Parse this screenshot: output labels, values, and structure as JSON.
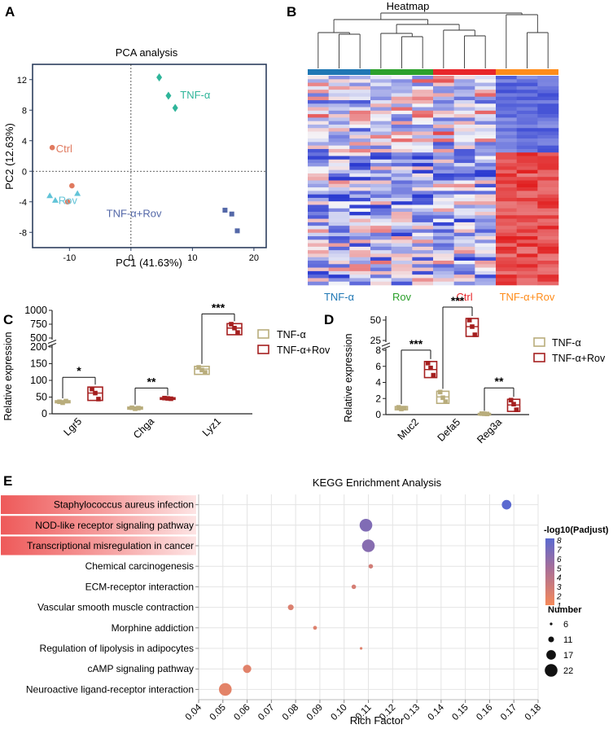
{
  "panel_labels": {
    "A": "A",
    "B": "B",
    "C": "C",
    "D": "D",
    "E": "E"
  },
  "colors": {
    "tnf": "#2fb59a",
    "ctrl": "#e07a5f",
    "rov": "#62c4d8",
    "tnfrov": "#5468a8",
    "heat_blue": "#1f77b4",
    "heat_green": "#2ca02c",
    "heat_red": "#e8262a",
    "heat_orange": "#ff8c1a",
    "box_tan": "#b9ad7c",
    "box_red": "#a51f1f",
    "hm_low": "#2b3bd1",
    "hm_mid": "#f4f4f8",
    "hm_high": "#e11f1f"
  },
  "chart_data": [
    {
      "id": "pca",
      "type": "scatter",
      "title": "PCA analysis",
      "xlabel": "PC1 (41.63%)",
      "ylabel": "PC2 (12.63%)",
      "xlim": [
        -16,
        22
      ],
      "ylim": [
        -10,
        14
      ],
      "xticks": [
        -10,
        0,
        10,
        20
      ],
      "yticks": [
        -8,
        -4,
        0,
        4,
        8,
        12
      ],
      "series": [
        {
          "name": "TNF-α",
          "color": "#2fb59a",
          "marker": "diamond",
          "label_pos": [
            8,
            9.5
          ],
          "points": [
            [
              4.6,
              12.3
            ],
            [
              6.1,
              9.9
            ],
            [
              7.2,
              8.3
            ]
          ]
        },
        {
          "name": "Ctrl",
          "color": "#e07a5f",
          "marker": "circle",
          "label_pos": [
            -12.2,
            2.5
          ],
          "points": [
            [
              -12.8,
              3.1
            ],
            [
              -9.6,
              -1.9
            ],
            [
              -10.3,
              -4.0
            ]
          ]
        },
        {
          "name": "Rov",
          "color": "#62c4d8",
          "marker": "triangle",
          "label_pos": [
            -11.8,
            -4.3
          ],
          "points": [
            [
              -13.2,
              -3.2
            ],
            [
              -12.3,
              -3.8
            ],
            [
              -8.7,
              -2.9
            ]
          ]
        },
        {
          "name": "TNF-α+Rov",
          "color": "#5468a8",
          "marker": "square",
          "label_pos": [
            -4,
            -6
          ],
          "points": [
            [
              15.3,
              -5.1
            ],
            [
              16.4,
              -5.6
            ],
            [
              17.3,
              -7.8
            ]
          ]
        }
      ]
    },
    {
      "id": "heatmap",
      "type": "heatmap",
      "title": "Heatmap",
      "groups": [
        "TNF-α",
        "Rov",
        "Ctrl",
        "TNF-α+Rov"
      ],
      "n_columns": 12,
      "n_rows": 60
    },
    {
      "id": "panel_c",
      "type": "box",
      "ylabel": "Relative expression",
      "categories": [
        "Lgr5",
        "Chga",
        "Lyz1"
      ],
      "lower_axis": {
        "range": [
          0,
          200
        ],
        "ticks": [
          0,
          50,
          100,
          150,
          200
        ]
      },
      "upper_axis": {
        "range": [
          500,
          1000
        ],
        "ticks": [
          500,
          750,
          1000
        ]
      },
      "legend": [
        "TNF-α",
        "TNF-α+Rov"
      ],
      "series": [
        {
          "name": "TNF-α",
          "color": "#b9ad7c",
          "boxes": [
            {
              "q1": 33,
              "median": 36,
              "q3": 39,
              "points": [
                36,
                33,
                38
              ]
            },
            {
              "q1": 14,
              "median": 17,
              "q3": 20,
              "points": [
                18,
                15,
                17
              ]
            },
            {
              "q1": 118,
              "median": 134,
              "q3": 142,
              "points": [
                139,
                131,
                124
              ]
            }
          ]
        },
        {
          "name": "TNF-α+Rov",
          "color": "#a51f1f",
          "boxes": [
            {
              "q1": 40,
              "median": 62,
              "q3": 80,
              "points": [
                74,
                62,
                44
              ]
            },
            {
              "q1": 44,
              "median": 46,
              "q3": 48,
              "points": [
                47,
                46,
                45
              ]
            },
            {
              "q1": 560,
              "median": 680,
              "q3": 760,
              "points": [
                750,
                680,
                600
              ]
            }
          ]
        }
      ],
      "significance": [
        "*",
        "**",
        "***"
      ]
    },
    {
      "id": "panel_d",
      "type": "box",
      "ylabel": "Relative expression",
      "categories": [
        "Muc2",
        "Defa5",
        "Reg3a"
      ],
      "lower_axis": {
        "range": [
          0,
          8
        ],
        "ticks": [
          0,
          2,
          4,
          6,
          8
        ]
      },
      "upper_axis": {
        "range": [
          25,
          55
        ],
        "ticks": [
          25,
          50
        ]
      },
      "legend": [
        "TNF-α",
        "TNF-α+Rov"
      ],
      "series": [
        {
          "name": "TNF-α",
          "color": "#b9ad7c",
          "boxes": [
            {
              "q1": 0.6,
              "median": 0.8,
              "q3": 1.0,
              "points": [
                0.9,
                0.7,
                0.8
              ]
            },
            {
              "q1": 1.4,
              "median": 2.2,
              "q3": 2.9,
              "points": [
                2.8,
                2.1,
                1.6
              ]
            },
            {
              "q1": 0.05,
              "median": 0.1,
              "q3": 0.15,
              "points": [
                0.12,
                0.1,
                0.08
              ]
            }
          ]
        },
        {
          "name": "TNF-α+Rov",
          "color": "#a51f1f",
          "boxes": [
            {
              "q1": 4.6,
              "median": 5.6,
              "q3": 6.6,
              "points": [
                6.4,
                5.8,
                4.9
              ]
            },
            {
              "q1": 30,
              "median": 42,
              "q3": 52,
              "points": [
                50,
                42,
                32
              ]
            },
            {
              "q1": 0.4,
              "median": 1.2,
              "q3": 1.9,
              "points": [
                1.8,
                1.3,
                0.6
              ]
            }
          ]
        }
      ],
      "significance": [
        "***",
        "***",
        "**"
      ]
    },
    {
      "id": "kegg",
      "type": "scatter",
      "title": "KEGG Enrichment Analysis",
      "xlabel": "Rich Factor",
      "xlim": [
        0.04,
        0.18
      ],
      "xticks": [
        "0.04",
        "0.05",
        "0.06",
        "0.07",
        "0.08",
        "0.09",
        "0.10",
        "0.11",
        "0.12",
        "0.13",
        "0.14",
        "0.15",
        "0.16",
        "0.17",
        "0.18"
      ],
      "color_legend": {
        "title": "-log10(Padjust)",
        "ticks": [
          "8",
          "7",
          "6",
          "5",
          "4",
          "3",
          "2",
          "1"
        ]
      },
      "size_legend": {
        "title": "Number",
        "values": [
          "6",
          "11",
          "17",
          "22"
        ]
      },
      "pathways": [
        {
          "name": "Staphylococcus aureus infection",
          "rich_factor": 0.167,
          "neglog10_padj": 8.0,
          "number": 17,
          "highlight": true
        },
        {
          "name": "NOD-like receptor signaling pathway",
          "rich_factor": 0.109,
          "neglog10_padj": 6.5,
          "number": 22,
          "highlight": true
        },
        {
          "name": "Transcriptional misregulation in cancer",
          "rich_factor": 0.11,
          "neglog10_padj": 6.2,
          "number": 22,
          "highlight": true
        },
        {
          "name": "Chemical carcinogenesis",
          "rich_factor": 0.111,
          "neglog10_padj": 2.8,
          "number": 9,
          "highlight": false
        },
        {
          "name": "ECM-receptor interaction",
          "rich_factor": 0.104,
          "neglog10_padj": 2.6,
          "number": 9,
          "highlight": false
        },
        {
          "name": "Vascular smooth muscle contraction",
          "rich_factor": 0.078,
          "neglog10_padj": 2.3,
          "number": 11,
          "highlight": false
        },
        {
          "name": "Morphine addiction",
          "rich_factor": 0.088,
          "neglog10_padj": 2.2,
          "number": 8,
          "highlight": false
        },
        {
          "name": "Regulation of lipolysis in adipocytes",
          "rich_factor": 0.107,
          "neglog10_padj": 2.1,
          "number": 6,
          "highlight": false
        },
        {
          "name": "cAMP signaling pathway",
          "rich_factor": 0.06,
          "neglog10_padj": 2.0,
          "number": 15,
          "highlight": false
        },
        {
          "name": "Neuroactive ligand-receptor interaction",
          "rich_factor": 0.051,
          "neglog10_padj": 1.9,
          "number": 22,
          "highlight": false
        }
      ]
    }
  ]
}
